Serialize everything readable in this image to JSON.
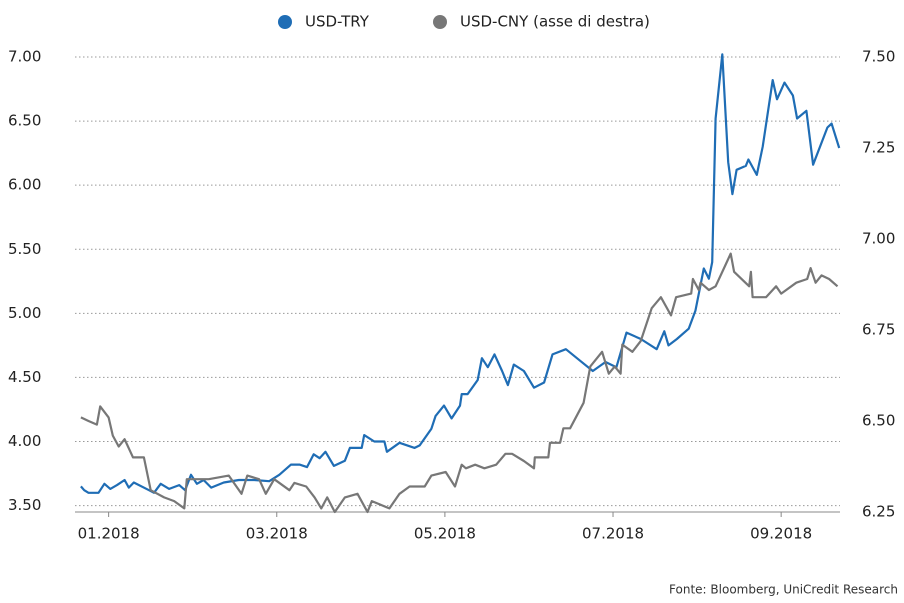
{
  "chart_data": {
    "type": "line",
    "source": "Fonte: Bloomberg, UniCredit Research",
    "xlim": [
      0.6,
      9.7
    ],
    "xticks": [
      {
        "value": 1,
        "label": "01.2018"
      },
      {
        "value": 3,
        "label": "03.2018"
      },
      {
        "value": 5,
        "label": "05.2018"
      },
      {
        "value": 7,
        "label": "07.2018"
      },
      {
        "value": 9,
        "label": "09.2018"
      }
    ],
    "ylim": [
      3.45,
      7.0
    ],
    "yticks": [
      {
        "value": 3.5,
        "label": "3.50"
      },
      {
        "value": 4,
        "label": "4.00"
      },
      {
        "value": 4.5,
        "label": "4.50"
      },
      {
        "value": 5,
        "label": "5.00"
      },
      {
        "value": 5.5,
        "label": "5.50"
      },
      {
        "value": 6,
        "label": "6.00"
      },
      {
        "value": 6.5,
        "label": "6.50"
      },
      {
        "value": 7,
        "label": "7.00"
      }
    ],
    "y2lim": [
      6.25,
      7.5
    ],
    "y2ticks": [
      {
        "value": 6.25,
        "label": "6.25"
      },
      {
        "value": 6.5,
        "label": "6.50"
      },
      {
        "value": 6.75,
        "label": "6.75"
      },
      {
        "value": 7,
        "label": "7.00"
      },
      {
        "value": 7.25,
        "label": "7.25"
      },
      {
        "value": 7.5,
        "label": "7.50"
      }
    ],
    "grid": true,
    "legend": "top",
    "series": [
      {
        "name": "USD-TRY",
        "color": "#1f6db5",
        "axis": "y",
        "x": [
          0.67,
          0.71,
          0.76,
          0.88,
          0.95,
          1.02,
          1.1,
          1.19,
          1.24,
          1.3,
          1.48,
          1.54,
          1.62,
          1.72,
          1.84,
          1.91,
          1.98,
          2.05,
          2.13,
          2.22,
          2.37,
          2.55,
          2.73,
          2.91,
          3.03,
          3.17,
          3.27,
          3.36,
          3.44,
          3.51,
          3.58,
          3.68,
          3.81,
          3.87,
          4.01,
          4.04,
          4.16,
          4.28,
          4.31,
          4.46,
          4.64,
          4.7,
          4.84,
          4.89,
          4.99,
          5.08,
          5.18,
          5.2,
          5.27,
          5.39,
          5.44,
          5.51,
          5.59,
          5.68,
          5.75,
          5.82,
          5.94,
          6.06,
          6.18,
          6.28,
          6.44,
          6.61,
          6.76,
          6.91,
          7.04,
          7.16,
          7.33,
          7.52,
          7.61,
          7.66,
          7.76,
          7.9,
          7.98,
          8.08,
          8.14,
          8.18,
          8.22,
          8.3,
          8.37,
          8.42,
          8.47,
          8.58,
          8.61,
          8.71,
          8.78,
          8.9,
          8.95,
          9.04,
          9.14,
          9.19,
          9.3,
          9.38,
          9.55,
          9.6,
          9.69
        ],
        "values": [
          3.65,
          3.62,
          3.6,
          3.6,
          3.67,
          3.63,
          3.66,
          3.7,
          3.64,
          3.68,
          3.62,
          3.6,
          3.67,
          3.63,
          3.66,
          3.62,
          3.74,
          3.67,
          3.7,
          3.64,
          3.68,
          3.7,
          3.7,
          3.69,
          3.74,
          3.82,
          3.82,
          3.8,
          3.9,
          3.87,
          3.92,
          3.81,
          3.85,
          3.95,
          3.95,
          4.05,
          4.0,
          4.0,
          3.92,
          3.99,
          3.95,
          3.97,
          4.1,
          4.2,
          4.28,
          4.18,
          4.28,
          4.37,
          4.37,
          4.48,
          4.65,
          4.58,
          4.68,
          4.55,
          4.44,
          4.6,
          4.55,
          4.42,
          4.46,
          4.68,
          4.72,
          4.63,
          4.55,
          4.62,
          4.58,
          4.85,
          4.8,
          4.72,
          4.86,
          4.75,
          4.8,
          4.88,
          5.02,
          5.35,
          5.27,
          5.4,
          6.52,
          7.02,
          6.18,
          5.93,
          6.12,
          6.15,
          6.2,
          6.08,
          6.3,
          6.82,
          6.67,
          6.8,
          6.7,
          6.52,
          6.58,
          6.16,
          6.45,
          6.48,
          6.29
        ]
      },
      {
        "name": "USD-CNY (asse di destra)",
        "color": "#777777",
        "axis": "y2",
        "x": [
          0.67,
          0.76,
          0.86,
          0.9,
          1.0,
          1.05,
          1.12,
          1.19,
          1.29,
          1.42,
          1.5,
          1.66,
          1.78,
          1.9,
          1.93,
          2.07,
          2.19,
          2.43,
          2.58,
          2.65,
          2.79,
          2.87,
          2.97,
          3.15,
          3.21,
          3.35,
          3.45,
          3.53,
          3.6,
          3.69,
          3.81,
          3.96,
          4.08,
          4.13,
          4.34,
          4.46,
          4.58,
          4.76,
          4.84,
          5.01,
          5.12,
          5.2,
          5.25,
          5.36,
          5.47,
          5.61,
          5.72,
          5.8,
          5.94,
          6.06,
          6.07,
          6.23,
          6.25,
          6.37,
          6.41,
          6.49,
          6.65,
          6.73,
          6.87,
          6.95,
          7.02,
          7.09,
          7.11,
          7.23,
          7.33,
          7.46,
          7.57,
          7.69,
          7.75,
          7.93,
          7.95,
          8.02,
          8.04,
          8.14,
          8.22,
          8.34,
          8.4,
          8.44,
          8.62,
          8.64,
          8.66,
          8.82,
          8.94,
          9.0,
          9.18,
          9.31,
          9.35,
          9.41,
          9.48,
          9.57,
          9.67
        ],
        "values": [
          6.51,
          6.5,
          6.49,
          6.54,
          6.51,
          6.46,
          6.43,
          6.45,
          6.4,
          6.4,
          6.31,
          6.29,
          6.28,
          6.26,
          6.34,
          6.34,
          6.34,
          6.35,
          6.3,
          6.35,
          6.34,
          6.3,
          6.34,
          6.31,
          6.33,
          6.32,
          6.29,
          6.26,
          6.29,
          6.25,
          6.29,
          6.3,
          6.25,
          6.28,
          6.26,
          6.3,
          6.32,
          6.32,
          6.35,
          6.36,
          6.32,
          6.38,
          6.37,
          6.38,
          6.37,
          6.38,
          6.41,
          6.41,
          6.39,
          6.37,
          6.4,
          6.4,
          6.44,
          6.44,
          6.48,
          6.48,
          6.55,
          6.65,
          6.69,
          6.63,
          6.65,
          6.63,
          6.71,
          6.69,
          6.72,
          6.81,
          6.84,
          6.79,
          6.84,
          6.85,
          6.89,
          6.86,
          6.88,
          6.86,
          6.87,
          6.93,
          6.96,
          6.91,
          6.87,
          6.91,
          6.84,
          6.84,
          6.87,
          6.85,
          6.88,
          6.89,
          6.92,
          6.88,
          6.9,
          6.89,
          6.87
        ]
      }
    ]
  }
}
